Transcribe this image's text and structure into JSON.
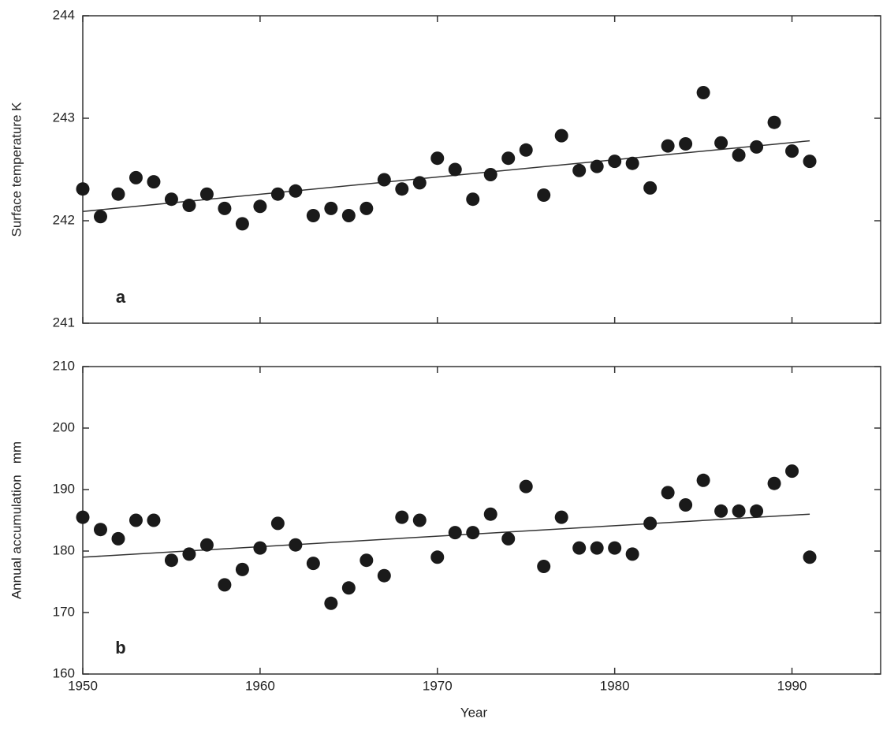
{
  "chart_data": [
    {
      "type": "scatter",
      "ylabel": "Surface temperature K",
      "annotation": "a",
      "color": "#1a1a1a",
      "x": [
        1950,
        1951,
        1952,
        1953,
        1954,
        1955,
        1956,
        1957,
        1958,
        1959,
        1960,
        1961,
        1962,
        1963,
        1964,
        1965,
        1966,
        1967,
        1968,
        1969,
        1970,
        1971,
        1972,
        1973,
        1974,
        1975,
        1976,
        1977,
        1978,
        1979,
        1980,
        1981,
        1982,
        1983,
        1984,
        1985,
        1986,
        1987,
        1988,
        1989,
        1990,
        1991
      ],
      "values": [
        242.31,
        242.04,
        242.26,
        242.42,
        242.38,
        242.21,
        242.15,
        242.26,
        242.12,
        241.97,
        242.14,
        242.26,
        242.29,
        242.05,
        242.12,
        242.05,
        242.12,
        242.4,
        242.31,
        242.37,
        242.61,
        242.5,
        242.21,
        242.45,
        242.61,
        242.69,
        242.25,
        242.83,
        242.49,
        242.53,
        242.58,
        242.56,
        242.32,
        242.73,
        242.75,
        243.25,
        242.76,
        242.64,
        242.72,
        242.96,
        242.68,
        242.58
      ],
      "trend": {
        "x": [
          1950,
          1991
        ],
        "values": [
          242.09,
          242.78
        ]
      },
      "xlim": [
        1950,
        1995
      ],
      "xticks": [
        1950,
        1960,
        1970,
        1980,
        1990
      ],
      "xtick_labels": false,
      "ylim": [
        241,
        244
      ],
      "yticks": [
        241,
        242,
        243,
        244
      ]
    },
    {
      "type": "scatter",
      "ylabel": "Annual accumulation   mm",
      "xlabel": "Year",
      "annotation": "b",
      "color": "#1a1a1a",
      "x": [
        1950,
        1951,
        1952,
        1953,
        1954,
        1955,
        1956,
        1957,
        1958,
        1959,
        1960,
        1961,
        1962,
        1963,
        1964,
        1965,
        1966,
        1967,
        1968,
        1969,
        1970,
        1971,
        1972,
        1973,
        1974,
        1975,
        1976,
        1977,
        1978,
        1979,
        1980,
        1981,
        1982,
        1983,
        1984,
        1985,
        1986,
        1987,
        1988,
        1989,
        1990,
        1991
      ],
      "values": [
        185.5,
        183.5,
        182,
        185,
        185,
        178.5,
        179.5,
        181,
        174.5,
        177,
        180.5,
        184.5,
        181,
        178,
        171.5,
        174,
        178.5,
        176,
        185.5,
        185,
        179,
        183,
        183,
        186,
        182,
        190.5,
        177.5,
        185.5,
        180.5,
        180.5,
        180.5,
        179.5,
        184.5,
        189.5,
        187.5,
        191.5,
        186.5,
        186.5,
        186.5,
        191,
        193,
        179
      ],
      "trend": {
        "x": [
          1950,
          1991
        ],
        "values": [
          179,
          186
        ]
      },
      "xlim": [
        1950,
        1995
      ],
      "xticks": [
        1950,
        1960,
        1970,
        1980,
        1990
      ],
      "xtick_labels": true,
      "ylim": [
        160,
        210
      ],
      "yticks": [
        160,
        170,
        180,
        190,
        200,
        210
      ]
    }
  ]
}
